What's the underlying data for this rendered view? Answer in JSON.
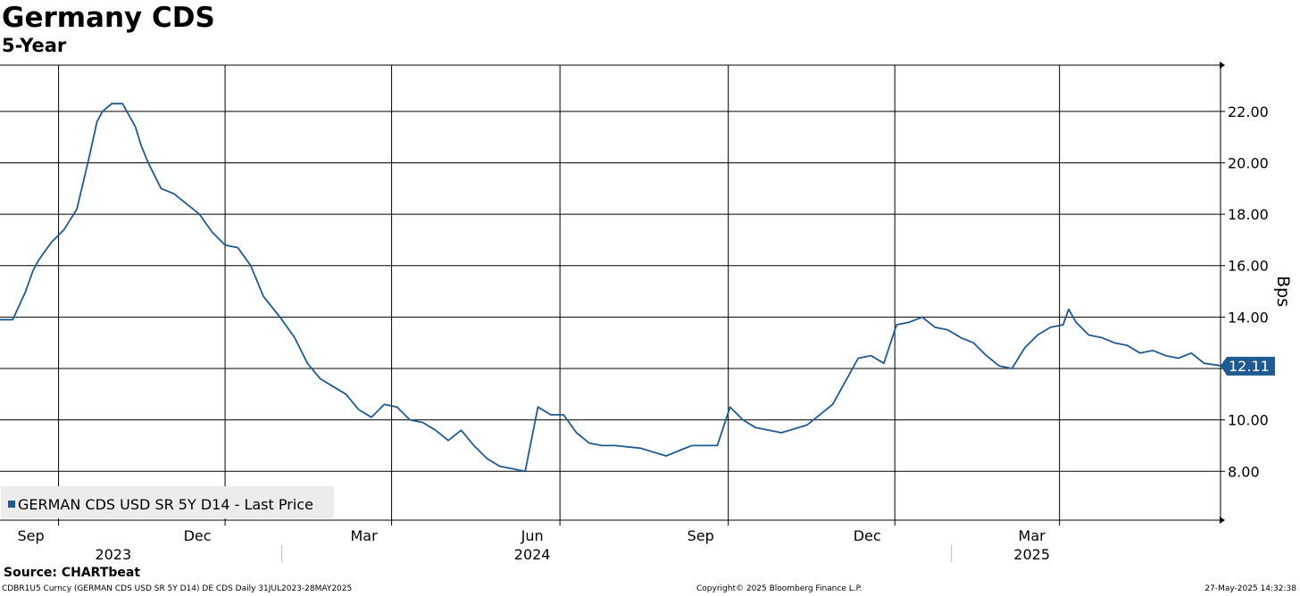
{
  "chart_data": {
    "type": "line",
    "title": "Germany CDS",
    "subtitle": "5-Year",
    "ylabel": "Bps",
    "ylim": [
      6.1,
      23.8
    ],
    "yticks": [
      8,
      10,
      12,
      14,
      16,
      18,
      20,
      22
    ],
    "ytick_labels": [
      "8.00",
      "10.00",
      "12.00",
      "14.00",
      "16.00",
      "18.00",
      "20.00",
      "22.00"
    ],
    "xlim": [
      "2023-07-31",
      "2025-05-28"
    ],
    "x_ticks": [
      {
        "date": "2023-09-01",
        "label": "Sep"
      },
      {
        "date": "2023-12-01",
        "label": "Dec"
      },
      {
        "date": "2024-03-01",
        "label": "Mar"
      },
      {
        "date": "2024-06-01",
        "label": "Jun"
      },
      {
        "date": "2024-09-01",
        "label": "Sep"
      },
      {
        "date": "2024-12-01",
        "label": "Dec"
      },
      {
        "date": "2025-03-01",
        "label": "Mar"
      }
    ],
    "year_labels": [
      {
        "date": "2023-10-16",
        "label": "2023"
      },
      {
        "date": "2024-06-01",
        "label": "2024"
      },
      {
        "date": "2025-03-01",
        "label": "2025"
      }
    ],
    "year_separators": [
      "2024-01-01",
      "2025-01-01"
    ],
    "grid": true,
    "legend_position": "bottom-left",
    "last_value_label": "12.11",
    "series": [
      {
        "name": "GERMAN CDS USD SR 5Y D14 - Last Price",
        "color": "#1f5a93",
        "x": [
          "2023-07-31",
          "2023-08-07",
          "2023-08-14",
          "2023-08-18",
          "2023-08-21",
          "2023-08-28",
          "2023-09-04",
          "2023-09-11",
          "2023-09-18",
          "2023-09-22",
          "2023-09-25",
          "2023-09-30",
          "2023-10-06",
          "2023-10-13",
          "2023-10-16",
          "2023-10-20",
          "2023-10-27",
          "2023-11-03",
          "2023-11-10",
          "2023-11-17",
          "2023-11-24",
          "2023-12-01",
          "2023-12-08",
          "2023-12-15",
          "2023-12-22",
          "2023-12-31",
          "2024-01-08",
          "2024-01-15",
          "2024-01-22",
          "2024-01-29",
          "2024-02-05",
          "2024-02-12",
          "2024-02-19",
          "2024-02-26",
          "2024-03-04",
          "2024-03-11",
          "2024-03-18",
          "2024-03-25",
          "2024-04-01",
          "2024-04-08",
          "2024-04-15",
          "2024-04-22",
          "2024-04-29",
          "2024-05-06",
          "2024-05-13",
          "2024-05-20",
          "2024-05-27",
          "2024-06-03",
          "2024-06-10",
          "2024-06-17",
          "2024-06-24",
          "2024-07-01",
          "2024-07-15",
          "2024-07-29",
          "2024-08-12",
          "2024-08-26",
          "2024-09-02",
          "2024-09-09",
          "2024-09-16",
          "2024-09-30",
          "2024-10-14",
          "2024-10-28",
          "2024-11-04",
          "2024-11-11",
          "2024-11-18",
          "2024-11-25",
          "2024-12-02",
          "2024-12-09",
          "2024-12-16",
          "2024-12-23",
          "2024-12-30",
          "2025-01-06",
          "2025-01-13",
          "2025-01-20",
          "2025-01-27",
          "2025-02-03",
          "2025-02-10",
          "2025-02-17",
          "2025-02-24",
          "2025-03-03",
          "2025-03-06",
          "2025-03-10",
          "2025-03-17",
          "2025-03-24",
          "2025-03-31",
          "2025-04-07",
          "2025-04-14",
          "2025-04-21",
          "2025-04-28",
          "2025-05-05",
          "2025-05-12",
          "2025-05-19",
          "2025-05-28"
        ],
        "values": [
          13.9,
          13.9,
          15.0,
          15.8,
          16.2,
          16.9,
          17.4,
          18.2,
          20.3,
          21.6,
          22.0,
          22.3,
          22.3,
          21.4,
          20.7,
          20.0,
          19.0,
          18.8,
          18.4,
          18.0,
          17.3,
          16.8,
          16.7,
          16.0,
          14.8,
          14.0,
          13.2,
          12.2,
          11.6,
          11.3,
          11.0,
          10.4,
          10.1,
          10.6,
          10.5,
          10.0,
          9.9,
          9.6,
          9.2,
          9.6,
          9.0,
          8.5,
          8.2,
          8.1,
          8.0,
          10.5,
          10.2,
          10.2,
          9.5,
          9.1,
          9.0,
          9.0,
          8.9,
          8.6,
          9.0,
          9.0,
          10.5,
          10.0,
          9.7,
          9.5,
          9.8,
          10.6,
          11.5,
          12.4,
          12.5,
          12.2,
          13.7,
          13.8,
          14.0,
          13.6,
          13.5,
          13.2,
          13.0,
          12.5,
          12.1,
          12.0,
          12.8,
          13.3,
          13.6,
          13.7,
          14.3,
          13.8,
          13.3,
          13.2,
          13.0,
          12.9,
          12.6,
          12.7,
          12.5,
          12.4,
          12.6,
          12.2,
          12.11
        ]
      }
    ]
  },
  "source_text": "Source: CHARTbeat",
  "footer": {
    "left": "CDBR1U5 Curncy (GERMAN CDS USD SR 5Y D14) DE CDS  Daily 31JUL2023-28MAY2025",
    "center": "Copyright© 2025 Bloomberg Finance L.P.",
    "right": "27-May-2025 14:32:38"
  }
}
